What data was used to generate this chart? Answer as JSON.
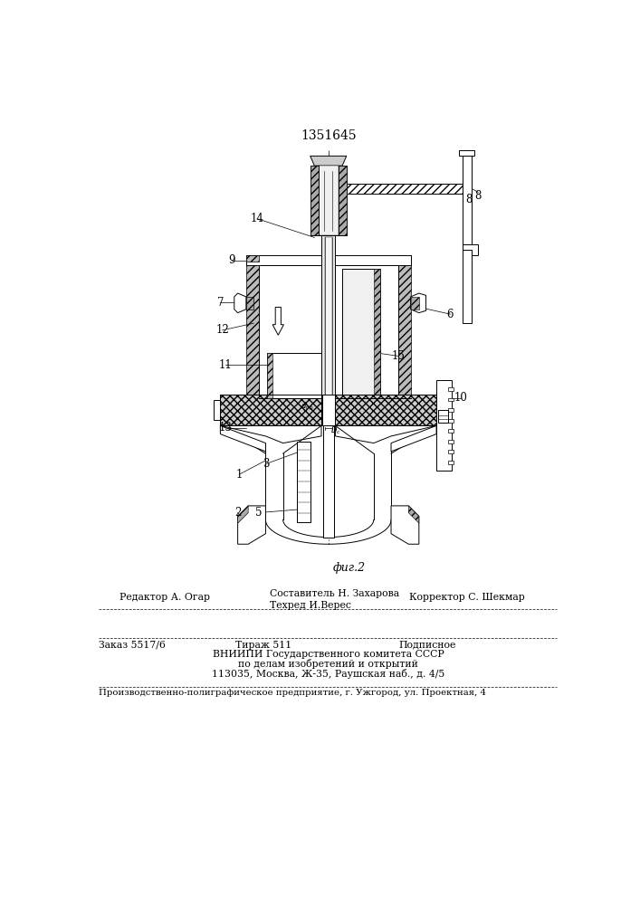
{
  "patent_number": "1351645",
  "figure_label": "фиг.2",
  "bg_color": "#ffffff",
  "line_color": "#000000",
  "footer": {
    "line1_left": "Редактор А. Огар",
    "line1_center": "Составитель Н. Захарова",
    "line1_right": "Корректор С. Шекмар",
    "line2_center": "Техред И.Верес",
    "line3_left": "Заказ 5517/6",
    "line3_center": "Тираж 511",
    "line3_right": "Подписное",
    "line4": "ВНИИПИ Государственного комитета СССР",
    "line5": "по делам изобретений и открытий",
    "line6": "113035, Москва, Ж-35, Раушская наб., д. 4/5",
    "line7": "Производственно-полиграфическое предприятие, г. Ужгород, ул. Проектная, 4"
  }
}
